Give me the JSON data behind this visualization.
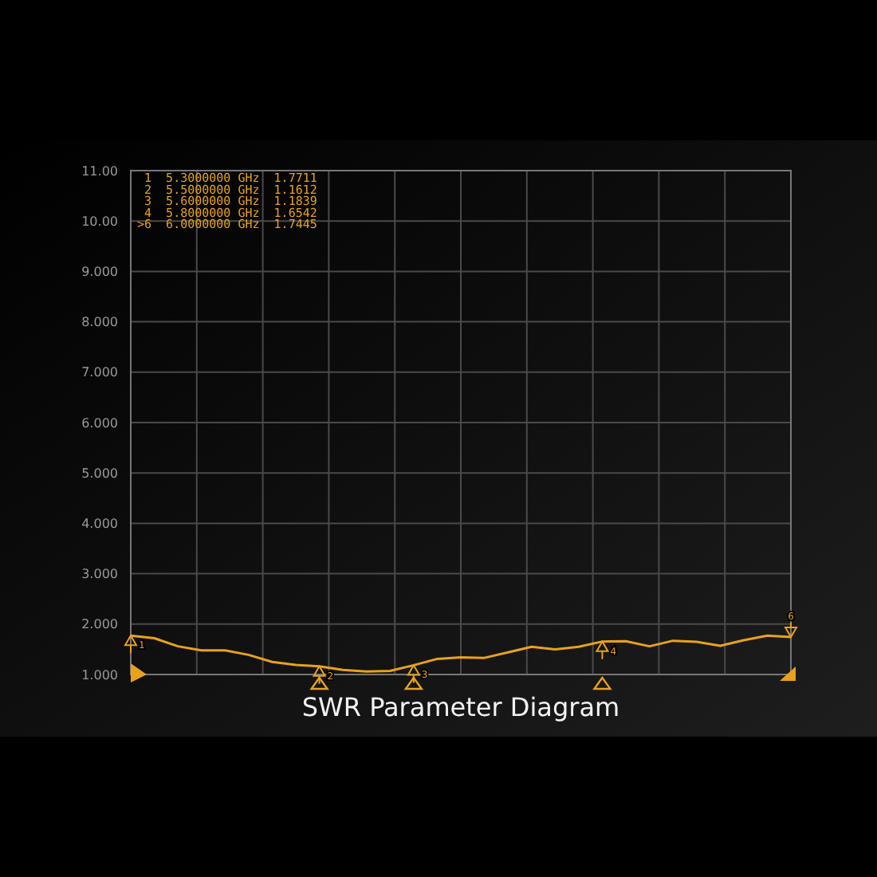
{
  "chart_data": {
    "type": "line",
    "title": "SWR Parameter Diagram",
    "categories": [
      null,
      null,
      null,
      null,
      null,
      null,
      null,
      null,
      null,
      null,
      null,
      null,
      null,
      null,
      null,
      null,
      null,
      null,
      null,
      null,
      null,
      null,
      null,
      null,
      null,
      null,
      null,
      null,
      null
    ],
    "series": [
      {
        "color": "#e8a21a",
        "values": [
          1.7711,
          1.72,
          1.56,
          1.48,
          1.48,
          1.39,
          1.25,
          1.19,
          1.1612,
          1.09,
          1.06,
          1.07,
          1.1839,
          1.31,
          1.34,
          1.33,
          1.44,
          1.55,
          1.5,
          1.55,
          1.6542,
          1.66,
          1.56,
          1.67,
          1.65,
          1.57,
          1.68,
          1.77,
          1.7445
        ]
      }
    ],
    "ylim": [
      1,
      11
    ],
    "yticks": [
      {
        "value": 1,
        "label": "1.000"
      },
      {
        "value": 2,
        "label": "2.000"
      },
      {
        "value": 3,
        "label": "3.000"
      },
      {
        "value": 4,
        "label": "4.000"
      },
      {
        "value": 5,
        "label": "5.000"
      },
      {
        "value": 6,
        "label": "6.000"
      },
      {
        "value": 7,
        "label": "7.000"
      },
      {
        "value": 8,
        "label": "8.000"
      },
      {
        "value": 9,
        "label": "9.000"
      },
      {
        "value": 10,
        "label": "10.00"
      },
      {
        "value": 11,
        "label": "11.00"
      }
    ],
    "grid": true,
    "marker": "none",
    "line_style": "solid",
    "annotations": [
      " 1  5.3000000 GHz  1.7711",
      " 2  5.5000000 GHz  1.1612",
      " 3  5.6000000 GHz  1.1839",
      " 4  5.8000000 GHz  1.6542",
      ">6  6.0000000 GHz  1.7445",
      {
        "text": "1",
        "y": 1.7711
      },
      {
        "text": "2",
        "y": 1.1612
      },
      {
        "text": "3",
        "y": 1.1839
      },
      {
        "text": "4",
        "y": 1.6542
      },
      {
        "text": "6",
        "y": 1.7445
      }
    ]
  }
}
